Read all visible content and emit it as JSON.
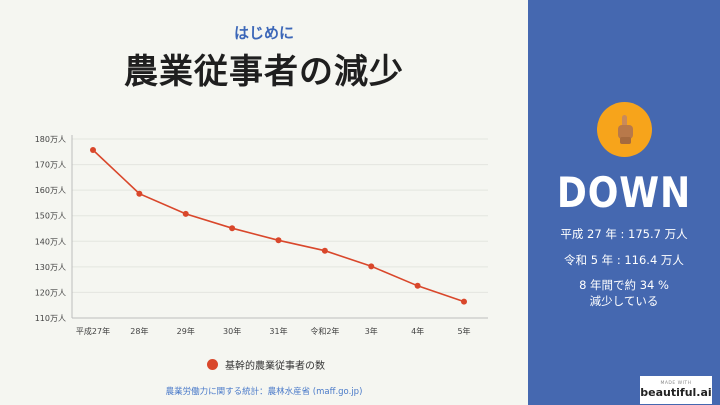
{
  "header": {
    "subtitle": "はじめに",
    "title": "農業従事者の減少"
  },
  "chart_data": {
    "type": "line",
    "categories": [
      "平成27年",
      "28年",
      "29年",
      "30年",
      "31年",
      "令和2年",
      "3年",
      "4年",
      "5年"
    ],
    "series": [
      {
        "name": "基幹的農業従事者の数",
        "values": [
          175.7,
          158.6,
          150.7,
          145.1,
          140.4,
          136.3,
          130.2,
          122.6,
          116.4
        ],
        "color": "#d9472b"
      }
    ],
    "ylim": [
      110,
      180
    ],
    "yticks": [
      110,
      120,
      130,
      140,
      150,
      160,
      170,
      180
    ],
    "ytick_labels": [
      "110万人",
      "120万人",
      "130万人",
      "140万人",
      "150万人",
      "160万人",
      "170万人",
      "180万人"
    ],
    "legend_position": "bottom",
    "grid": true
  },
  "legend": {
    "label": "基幹的農業従事者の数"
  },
  "source": "農業労働力に関する統計：農林水産省 (maff.go.jp)",
  "sidebar": {
    "icon": "pointing-finger-icon",
    "headline": "DOWN",
    "stat1": "平成 27 年 : 175.7 万人",
    "stat2": "令和 5 年 : 116.4 万人",
    "stat3_line1": "8 年間で約 34 %",
    "stat3_line2": "減少している",
    "accent_color": "#f7a41b",
    "background_color": "#4568b0"
  },
  "badge": {
    "small": "MADE WITH",
    "brand": "beautiful.ai"
  }
}
